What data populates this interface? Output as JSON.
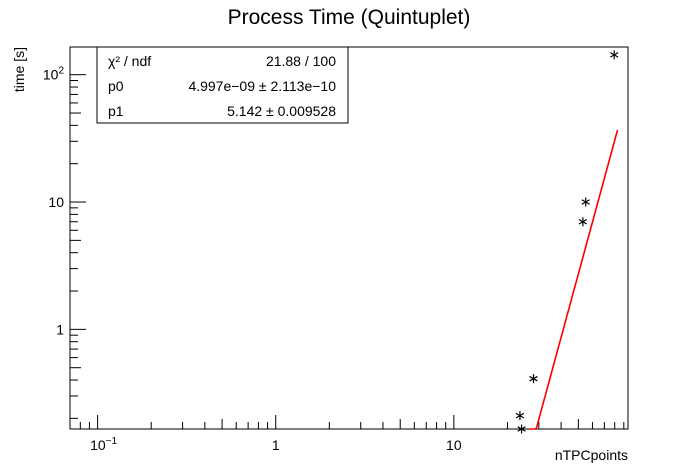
{
  "chart_data": {
    "type": "scatter",
    "title": "Process Time (Quintuplet)",
    "xlabel": "nTPCpoints",
    "ylabel": "time [s]",
    "x_scale": "log",
    "y_scale": "log",
    "xlim": [
      0.07,
      95
    ],
    "ylim": [
      0.165,
      165
    ],
    "x_ticks": [
      {
        "value": 0.1,
        "base": "10",
        "exp": "−1"
      },
      {
        "value": 1,
        "label": "1"
      },
      {
        "value": 10,
        "label": "10"
      }
    ],
    "y_ticks": [
      {
        "value": 1,
        "label": "1"
      },
      {
        "value": 10,
        "label": "10"
      },
      {
        "value": 100,
        "base": "10",
        "exp": "2"
      }
    ],
    "grid": false,
    "points": [
      {
        "x": 23.5,
        "y": 0.21
      },
      {
        "x": 24.0,
        "y": 0.165
      },
      {
        "x": 28.0,
        "y": 0.41
      },
      {
        "x": 53.0,
        "y": 7.0
      },
      {
        "x": 55.0,
        "y": 10.0
      },
      {
        "x": 79.5,
        "y": 143
      }
    ],
    "fit": {
      "function": "p0*x^p1",
      "color": "#ff0000",
      "p0": 4.997e-09,
      "p1": 5.142,
      "x_range": [
        26.5,
        83
      ]
    },
    "stats_box": {
      "rows": [
        {
          "name": "χ² / ndf",
          "value": "21.88 / 100"
        },
        {
          "name": "p0",
          "value": "4.997e−09 ± 2.113e−10"
        },
        {
          "name": "p1",
          "value": "5.142 ± 0.009528"
        }
      ]
    }
  }
}
